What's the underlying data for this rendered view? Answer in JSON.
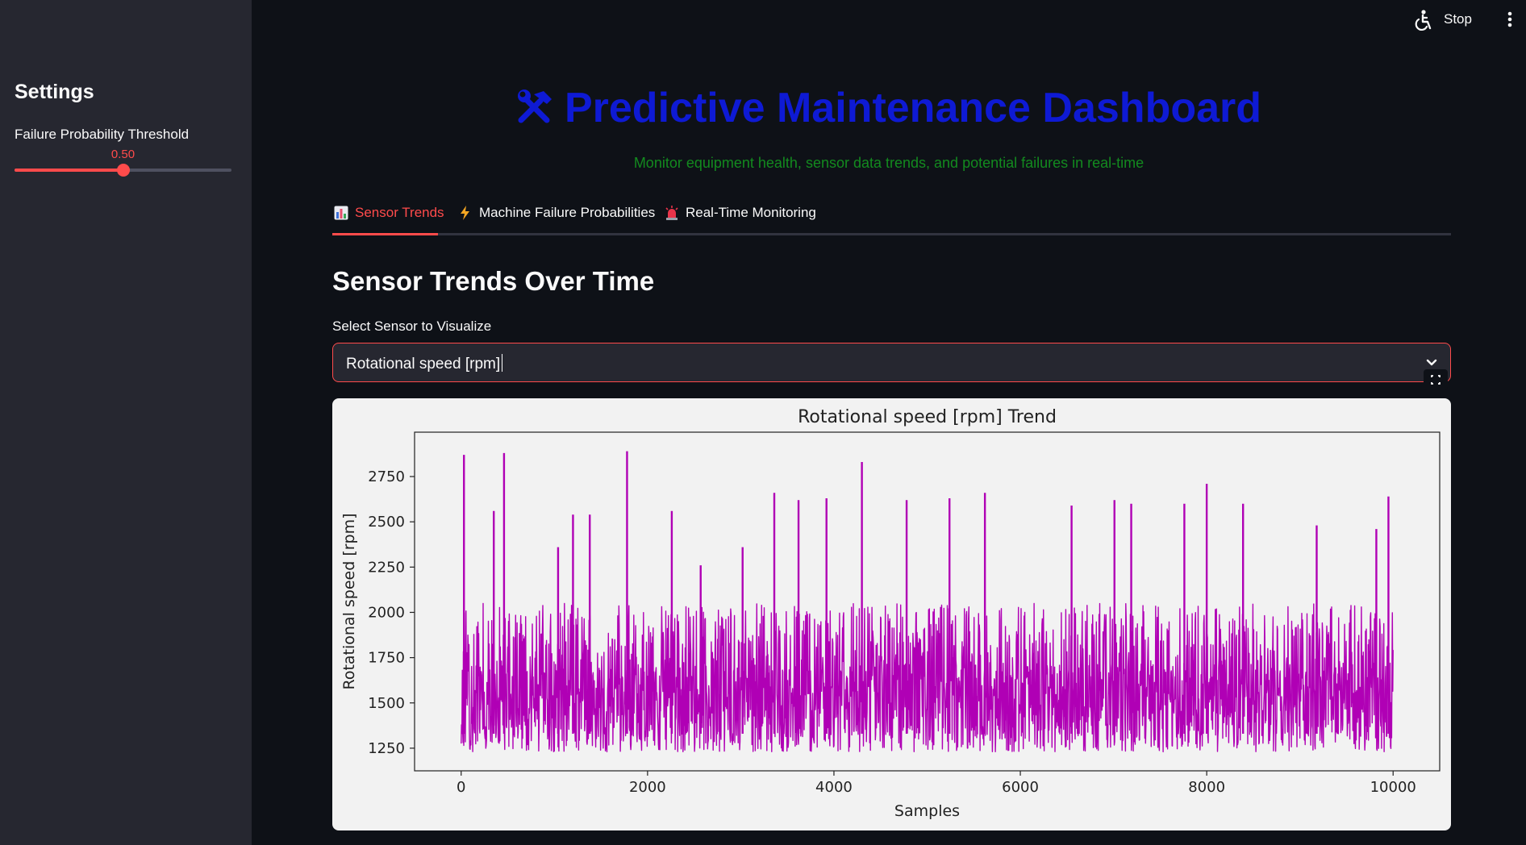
{
  "sidebar": {
    "title": "Settings",
    "slider": {
      "label": "Failure Probability Threshold",
      "value_text": "0.50",
      "value": 0.5,
      "min": 0,
      "max": 1
    }
  },
  "topbar": {
    "stop_label": "Stop",
    "icons": [
      "accessibility-icon",
      "more-vertical-icon"
    ]
  },
  "header": {
    "title": "Predictive Maintenance Dashboard",
    "title_icon": "hammer-wrench-icon",
    "subtitle": "Monitor equipment health, sensor data trends, and potential failures in real-time"
  },
  "tabs": [
    {
      "label": "Sensor Trends",
      "icon": "bar-chart-icon",
      "active": true
    },
    {
      "label": "Machine Failure Probabilities",
      "icon": "lightning-icon",
      "active": false
    },
    {
      "label": "Real-Time Monitoring",
      "icon": "siren-icon",
      "active": false
    }
  ],
  "main": {
    "section_title": "Sensor Trends Over Time",
    "select_label": "Select Sensor to Visualize",
    "select_value": "Rotational speed [rpm]"
  },
  "colors": {
    "accent": "#ff4b4b",
    "title": "#0e1ad4",
    "subtitle": "#138a1f",
    "series": "#b000b5",
    "background": "#0e1117",
    "sidebar": "#262730"
  },
  "chart_data": {
    "type": "line",
    "title": "Rotational speed [rpm] Trend",
    "xlabel": "Samples",
    "ylabel": "Rotational speed [rpm]",
    "xlim": [
      -500,
      10500
    ],
    "ylim": [
      1125,
      2995
    ],
    "xticks": [
      0,
      2000,
      4000,
      6000,
      8000,
      10000
    ],
    "yticks": [
      1250,
      1500,
      1750,
      2000,
      2250,
      2500,
      2750
    ],
    "grid": false,
    "series": [
      {
        "n_samples": 10000,
        "baseline_band": [
          1380,
          1720
        ],
        "typical_range": [
          1230,
          2050
        ],
        "spike_peaks": [
          {
            "x": 30,
            "y": 2870
          },
          {
            "x": 350,
            "y": 2560
          },
          {
            "x": 460,
            "y": 2880
          },
          {
            "x": 1040,
            "y": 2360
          },
          {
            "x": 1200,
            "y": 2540
          },
          {
            "x": 1380,
            "y": 2540
          },
          {
            "x": 1780,
            "y": 2890
          },
          {
            "x": 2260,
            "y": 2560
          },
          {
            "x": 2570,
            "y": 2260
          },
          {
            "x": 3020,
            "y": 2360
          },
          {
            "x": 3360,
            "y": 2660
          },
          {
            "x": 3620,
            "y": 2620
          },
          {
            "x": 3920,
            "y": 2630
          },
          {
            "x": 4300,
            "y": 2830
          },
          {
            "x": 4780,
            "y": 2620
          },
          {
            "x": 5240,
            "y": 2630
          },
          {
            "x": 5620,
            "y": 2660
          },
          {
            "x": 6550,
            "y": 2590
          },
          {
            "x": 7010,
            "y": 2620
          },
          {
            "x": 7190,
            "y": 2600
          },
          {
            "x": 7760,
            "y": 2600
          },
          {
            "x": 8000,
            "y": 2710
          },
          {
            "x": 8390,
            "y": 2600
          },
          {
            "x": 9180,
            "y": 2480
          },
          {
            "x": 9820,
            "y": 2460
          },
          {
            "x": 9950,
            "y": 2640
          }
        ]
      }
    ]
  }
}
